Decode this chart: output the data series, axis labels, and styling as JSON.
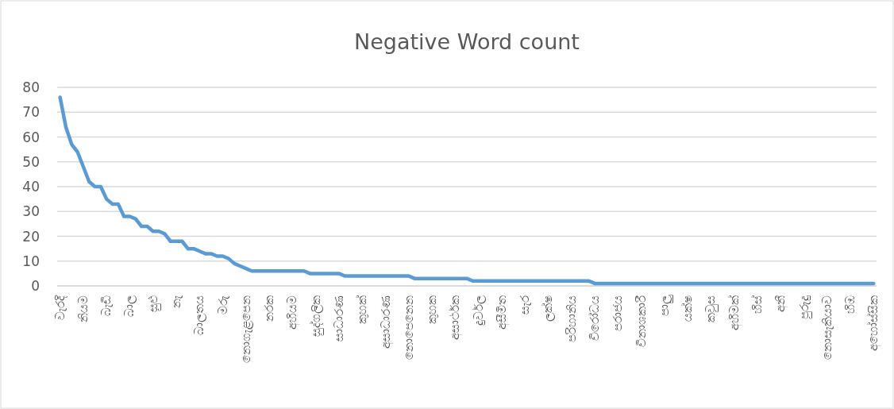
{
  "chart_data": {
    "type": "line",
    "title": "Negative Word count",
    "color": "#5b9bd5",
    "grid": "y",
    "ylim": [
      0,
      80
    ],
    "yticks": [
      0,
      10,
      20,
      30,
      40,
      50,
      60,
      70,
      80
    ],
    "categories": [
      "වැරදි",
      null,
      null,
      null,
      "නියම",
      null,
      null,
      null,
      "බැඩි",
      null,
      null,
      null,
      "බාල",
      null,
      null,
      null,
      "සුළු",
      null,
      null,
      null,
      "නැ",
      null,
      null,
      null,
      "බාලතය",
      null,
      null,
      null,
      "මරු",
      null,
      null,
      null,
      "නොගැළපෙන",
      null,
      null,
      null,
      "නරක",
      null,
      null,
      null,
      "අහියම",
      null,
      null,
      null,
      "සුද්ගලික",
      null,
      null,
      null,
      "සාධාරණ",
      null,
      null,
      null,
      "කුහක්",
      null,
      null,
      null,
      "අසාධාරණ",
      null,
      null,
      null,
      "නොපෙනෙන",
      null,
      null,
      null,
      "කුහක",
      null,
      null,
      null,
      "අසාර්ථක",
      null,
      null,
      null,
      "දුර්වල",
      null,
      null,
      null,
      "අසීමිත",
      null,
      null,
      null,
      "සැර",
      null,
      null,
      null,
      "ලක්ෂ",
      null,
      null,
      null,
      "පරිහානිය",
      null,
      null,
      null,
      "විරෝධය",
      null,
      null,
      null,
      "පරාජය",
      null,
      null,
      null,
      "විනාශකාරී",
      null,
      null,
      null,
      "පාලු",
      null,
      null,
      null,
      "යක්ෂ",
      null,
      null,
      null,
      "කවුස",
      null,
      null,
      null,
      "අහිමක්",
      null,
      null,
      null,
      "හිස්",
      null,
      null,
      null,
      "අනී",
      null,
      null,
      null,
      "පුරුදු",
      null,
      null,
      null,
      "නොසැකියාව",
      null,
      null,
      null,
      "හිඹ",
      null,
      null,
      null,
      "අහෝස්සික"
    ],
    "values": [
      76,
      64,
      57,
      54,
      48,
      42,
      40,
      40,
      35,
      33,
      33,
      28,
      28,
      27,
      24,
      24,
      22,
      22,
      21,
      18,
      18,
      18,
      15,
      15,
      14,
      13,
      13,
      12,
      12,
      11,
      9,
      8,
      7,
      6,
      6,
      6,
      6,
      6,
      6,
      6,
      6,
      6,
      6,
      5,
      5,
      5,
      5,
      5,
      5,
      4,
      4,
      4,
      4,
      4,
      4,
      4,
      4,
      4,
      4,
      4,
      4,
      3,
      3,
      3,
      3,
      3,
      3,
      3,
      3,
      3,
      3,
      2,
      2,
      2,
      2,
      2,
      2,
      2,
      2,
      2,
      2,
      2,
      2,
      2,
      2,
      2,
      2,
      2,
      2,
      2,
      2,
      2,
      1,
      1,
      1,
      1,
      1,
      1,
      1,
      1,
      1,
      1,
      1,
      1,
      1,
      1,
      1,
      1,
      1,
      1,
      1,
      1,
      1,
      1,
      1,
      1,
      1,
      1,
      1,
      1,
      1,
      1,
      1,
      1,
      1,
      1,
      1,
      1,
      1,
      1,
      1,
      1,
      1,
      1,
      1,
      1,
      1,
      1,
      1,
      1,
      1
    ]
  }
}
